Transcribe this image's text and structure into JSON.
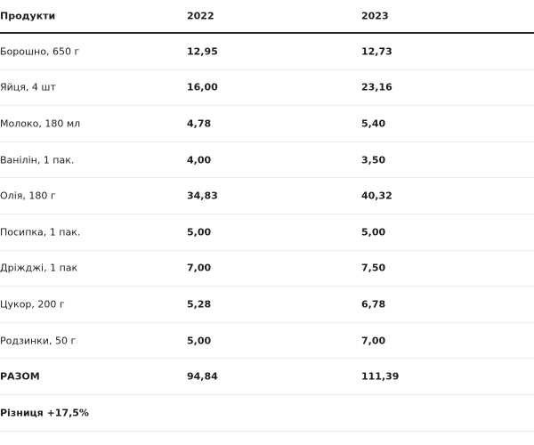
{
  "table": {
    "headers": [
      "Продукти",
      "2022",
      "2023"
    ],
    "rows": [
      [
        "Борошно, 650 г",
        "12,95",
        "12,73"
      ],
      [
        "Яйця, 4 шт",
        "16,00",
        "23,16"
      ],
      [
        "Молоко, 180 мл",
        "4,78",
        "5,40"
      ],
      [
        "Ванілін, 1 пак.",
        "4,00",
        "3,50"
      ],
      [
        "Олія, 180 г",
        "34,83",
        "40,32"
      ],
      [
        "Посипка, 1 пак.",
        "5,00",
        "5,00"
      ],
      [
        "Дріжджі, 1 пак",
        "7,00",
        "7,50"
      ],
      [
        "Цукор, 200 г",
        "5,28",
        "6,78"
      ],
      [
        "Родзинки, 50 г",
        "5,00",
        "7,00"
      ]
    ],
    "total": [
      "РАЗОМ",
      "94,84",
      "111,39"
    ],
    "footer": "Різниця +17,5%"
  }
}
